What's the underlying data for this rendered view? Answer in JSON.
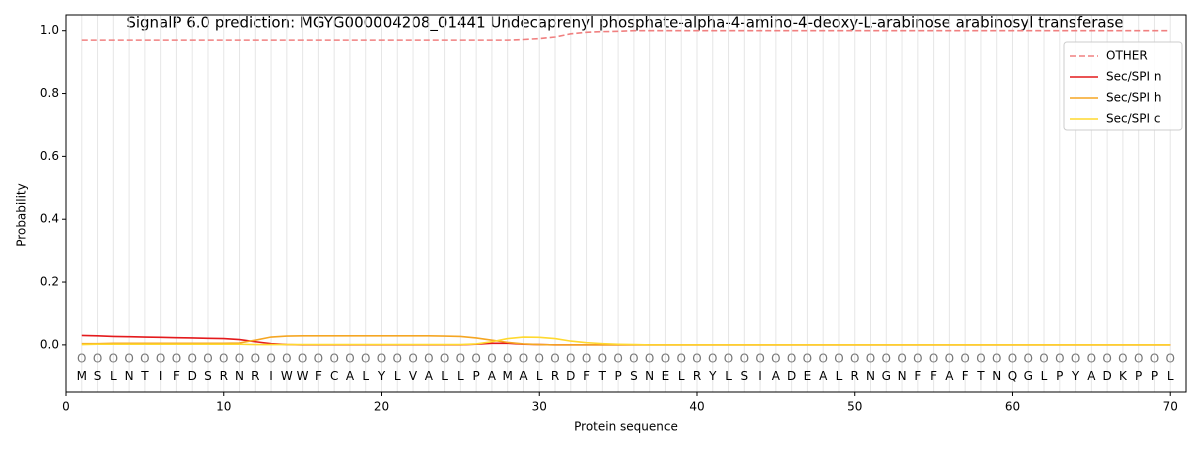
{
  "chart_data": {
    "type": "line",
    "title": "SignalP 6.0 prediction: MGYG000004208_01441 Undecaprenyl phosphate-alpha-4-amino-4-deoxy-L-arabinose arabinosyl transferase",
    "xlabel": "Protein sequence",
    "ylabel": "Probability",
    "x": [
      1,
      2,
      3,
      4,
      5,
      6,
      7,
      8,
      9,
      10,
      11,
      12,
      13,
      14,
      15,
      16,
      17,
      18,
      19,
      20,
      21,
      22,
      23,
      24,
      25,
      26,
      27,
      28,
      29,
      30,
      31,
      32,
      33,
      34,
      35,
      36,
      37,
      38,
      39,
      40,
      41,
      42,
      43,
      44,
      45,
      46,
      47,
      48,
      49,
      50,
      51,
      52,
      53,
      54,
      55,
      56,
      57,
      58,
      59,
      60,
      61,
      62,
      63,
      64,
      65,
      66,
      67,
      68,
      69,
      70
    ],
    "residues": [
      "M",
      "S",
      "L",
      "N",
      "T",
      "I",
      "F",
      "D",
      "S",
      "R",
      "N",
      "R",
      "I",
      "W",
      "W",
      "F",
      "C",
      "A",
      "L",
      "Y",
      "L",
      "V",
      "A",
      "L",
      "L",
      "P",
      "A",
      "M",
      "A",
      "L",
      "R",
      "D",
      "F",
      "T",
      "P",
      "S",
      "N",
      "E",
      "L",
      "R",
      "Y",
      "L",
      "S",
      "I",
      "A",
      "D",
      "E",
      "A",
      "L",
      "R",
      "N",
      "G",
      "N",
      "F",
      "F",
      "A",
      "F",
      "T",
      "N",
      "Q",
      "G",
      "L",
      "P",
      "Y",
      "A",
      "D",
      "K",
      "P",
      "P",
      "L"
    ],
    "region_labels": [
      "O",
      "O",
      "O",
      "O",
      "O",
      "O",
      "O",
      "O",
      "O",
      "O",
      "O",
      "O",
      "O",
      "O",
      "O",
      "O",
      "O",
      "O",
      "O",
      "O",
      "O",
      "O",
      "O",
      "O",
      "O",
      "O",
      "O",
      "O",
      "O",
      "O",
      "O",
      "O",
      "O",
      "O",
      "O",
      "O",
      "O",
      "O",
      "O",
      "O",
      "O",
      "O",
      "O",
      "O",
      "O",
      "O",
      "O",
      "O",
      "O",
      "O",
      "O",
      "O",
      "O",
      "O",
      "O",
      "O",
      "O",
      "O",
      "O",
      "O",
      "O",
      "O",
      "O",
      "O",
      "O",
      "O",
      "O",
      "O",
      "O",
      "O"
    ],
    "series": [
      {
        "name": "OTHER",
        "color": "#f08080",
        "dashed": true,
        "values": [
          0.97,
          0.97,
          0.97,
          0.97,
          0.97,
          0.97,
          0.97,
          0.97,
          0.97,
          0.97,
          0.97,
          0.97,
          0.97,
          0.97,
          0.97,
          0.97,
          0.97,
          0.97,
          0.97,
          0.97,
          0.97,
          0.97,
          0.97,
          0.97,
          0.97,
          0.97,
          0.97,
          0.97,
          0.972,
          0.975,
          0.98,
          0.99,
          0.995,
          0.997,
          0.998,
          1,
          1,
          1,
          1,
          1,
          1,
          1,
          1,
          1,
          1,
          1,
          1,
          1,
          1,
          1,
          1,
          1,
          1,
          1,
          1,
          1,
          1,
          1,
          1,
          1,
          1,
          1,
          1,
          1,
          1,
          1,
          1,
          1,
          1,
          1
        ]
      },
      {
        "name": "Sec/SPI n",
        "color": "#e41a1c",
        "values": [
          0.03,
          0.029,
          0.027,
          0.026,
          0.025,
          0.024,
          0.023,
          0.022,
          0.021,
          0.02,
          0.017,
          0.01,
          0.004,
          0.001,
          0,
          0,
          0,
          0,
          0,
          0,
          0,
          0,
          0,
          0,
          0,
          0.002,
          0.005,
          0.005,
          0.002,
          0.001,
          0,
          0,
          0,
          0,
          0,
          0,
          0,
          0,
          0,
          0,
          0,
          0,
          0,
          0,
          0,
          0,
          0,
          0,
          0,
          0,
          0,
          0,
          0,
          0,
          0,
          0,
          0,
          0,
          0,
          0,
          0,
          0,
          0,
          0,
          0,
          0,
          0,
          0,
          0,
          0
        ]
      },
      {
        "name": "Sec/SPI h",
        "color": "#f5a623",
        "values": [
          0.004,
          0.004,
          0.005,
          0.005,
          0.005,
          0.005,
          0.005,
          0.005,
          0.005,
          0.005,
          0.006,
          0.015,
          0.025,
          0.028,
          0.029,
          0.029,
          0.029,
          0.029,
          0.029,
          0.029,
          0.029,
          0.029,
          0.029,
          0.028,
          0.027,
          0.022,
          0.015,
          0.008,
          0.003,
          0.001,
          0,
          0,
          0,
          0,
          0,
          0,
          0,
          0,
          0,
          0,
          0,
          0,
          0,
          0,
          0,
          0,
          0,
          0,
          0,
          0,
          0,
          0,
          0,
          0,
          0,
          0,
          0,
          0,
          0,
          0,
          0,
          0,
          0,
          0,
          0,
          0,
          0,
          0,
          0,
          0
        ]
      },
      {
        "name": "Sec/SPI c",
        "color": "#ffd92f",
        "values": [
          0.001,
          0.002,
          0.002,
          0.002,
          0.002,
          0.002,
          0.002,
          0.002,
          0.002,
          0.002,
          0.002,
          0.001,
          0.001,
          0.001,
          0.001,
          0.001,
          0.001,
          0.001,
          0.001,
          0.001,
          0.001,
          0.001,
          0.001,
          0.001,
          0.001,
          0.003,
          0.01,
          0.02,
          0.025,
          0.024,
          0.02,
          0.012,
          0.007,
          0.004,
          0.002,
          0.001,
          0,
          0,
          0,
          0,
          0,
          0,
          0,
          0,
          0,
          0,
          0,
          0,
          0,
          0,
          0,
          0,
          0,
          0,
          0,
          0,
          0,
          0,
          0,
          0,
          0,
          0,
          0,
          0,
          0,
          0,
          0,
          0,
          0,
          0
        ]
      }
    ],
    "xlim": [
      0,
      71
    ],
    "ylim": [
      -0.15,
      1.05
    ],
    "xticks": [
      0,
      10,
      20,
      30,
      40,
      50,
      60,
      70
    ],
    "yticks": [
      {
        "value": 0,
        "label": "0.0"
      },
      {
        "value": 0.2,
        "label": "0.2"
      },
      {
        "value": 0.4,
        "label": "0.4"
      },
      {
        "value": 0.6,
        "label": "0.6"
      },
      {
        "value": 0.8,
        "label": "0.8"
      },
      {
        "value": 1,
        "label": "1.0"
      }
    ],
    "grid": true,
    "legend": "upper right"
  }
}
